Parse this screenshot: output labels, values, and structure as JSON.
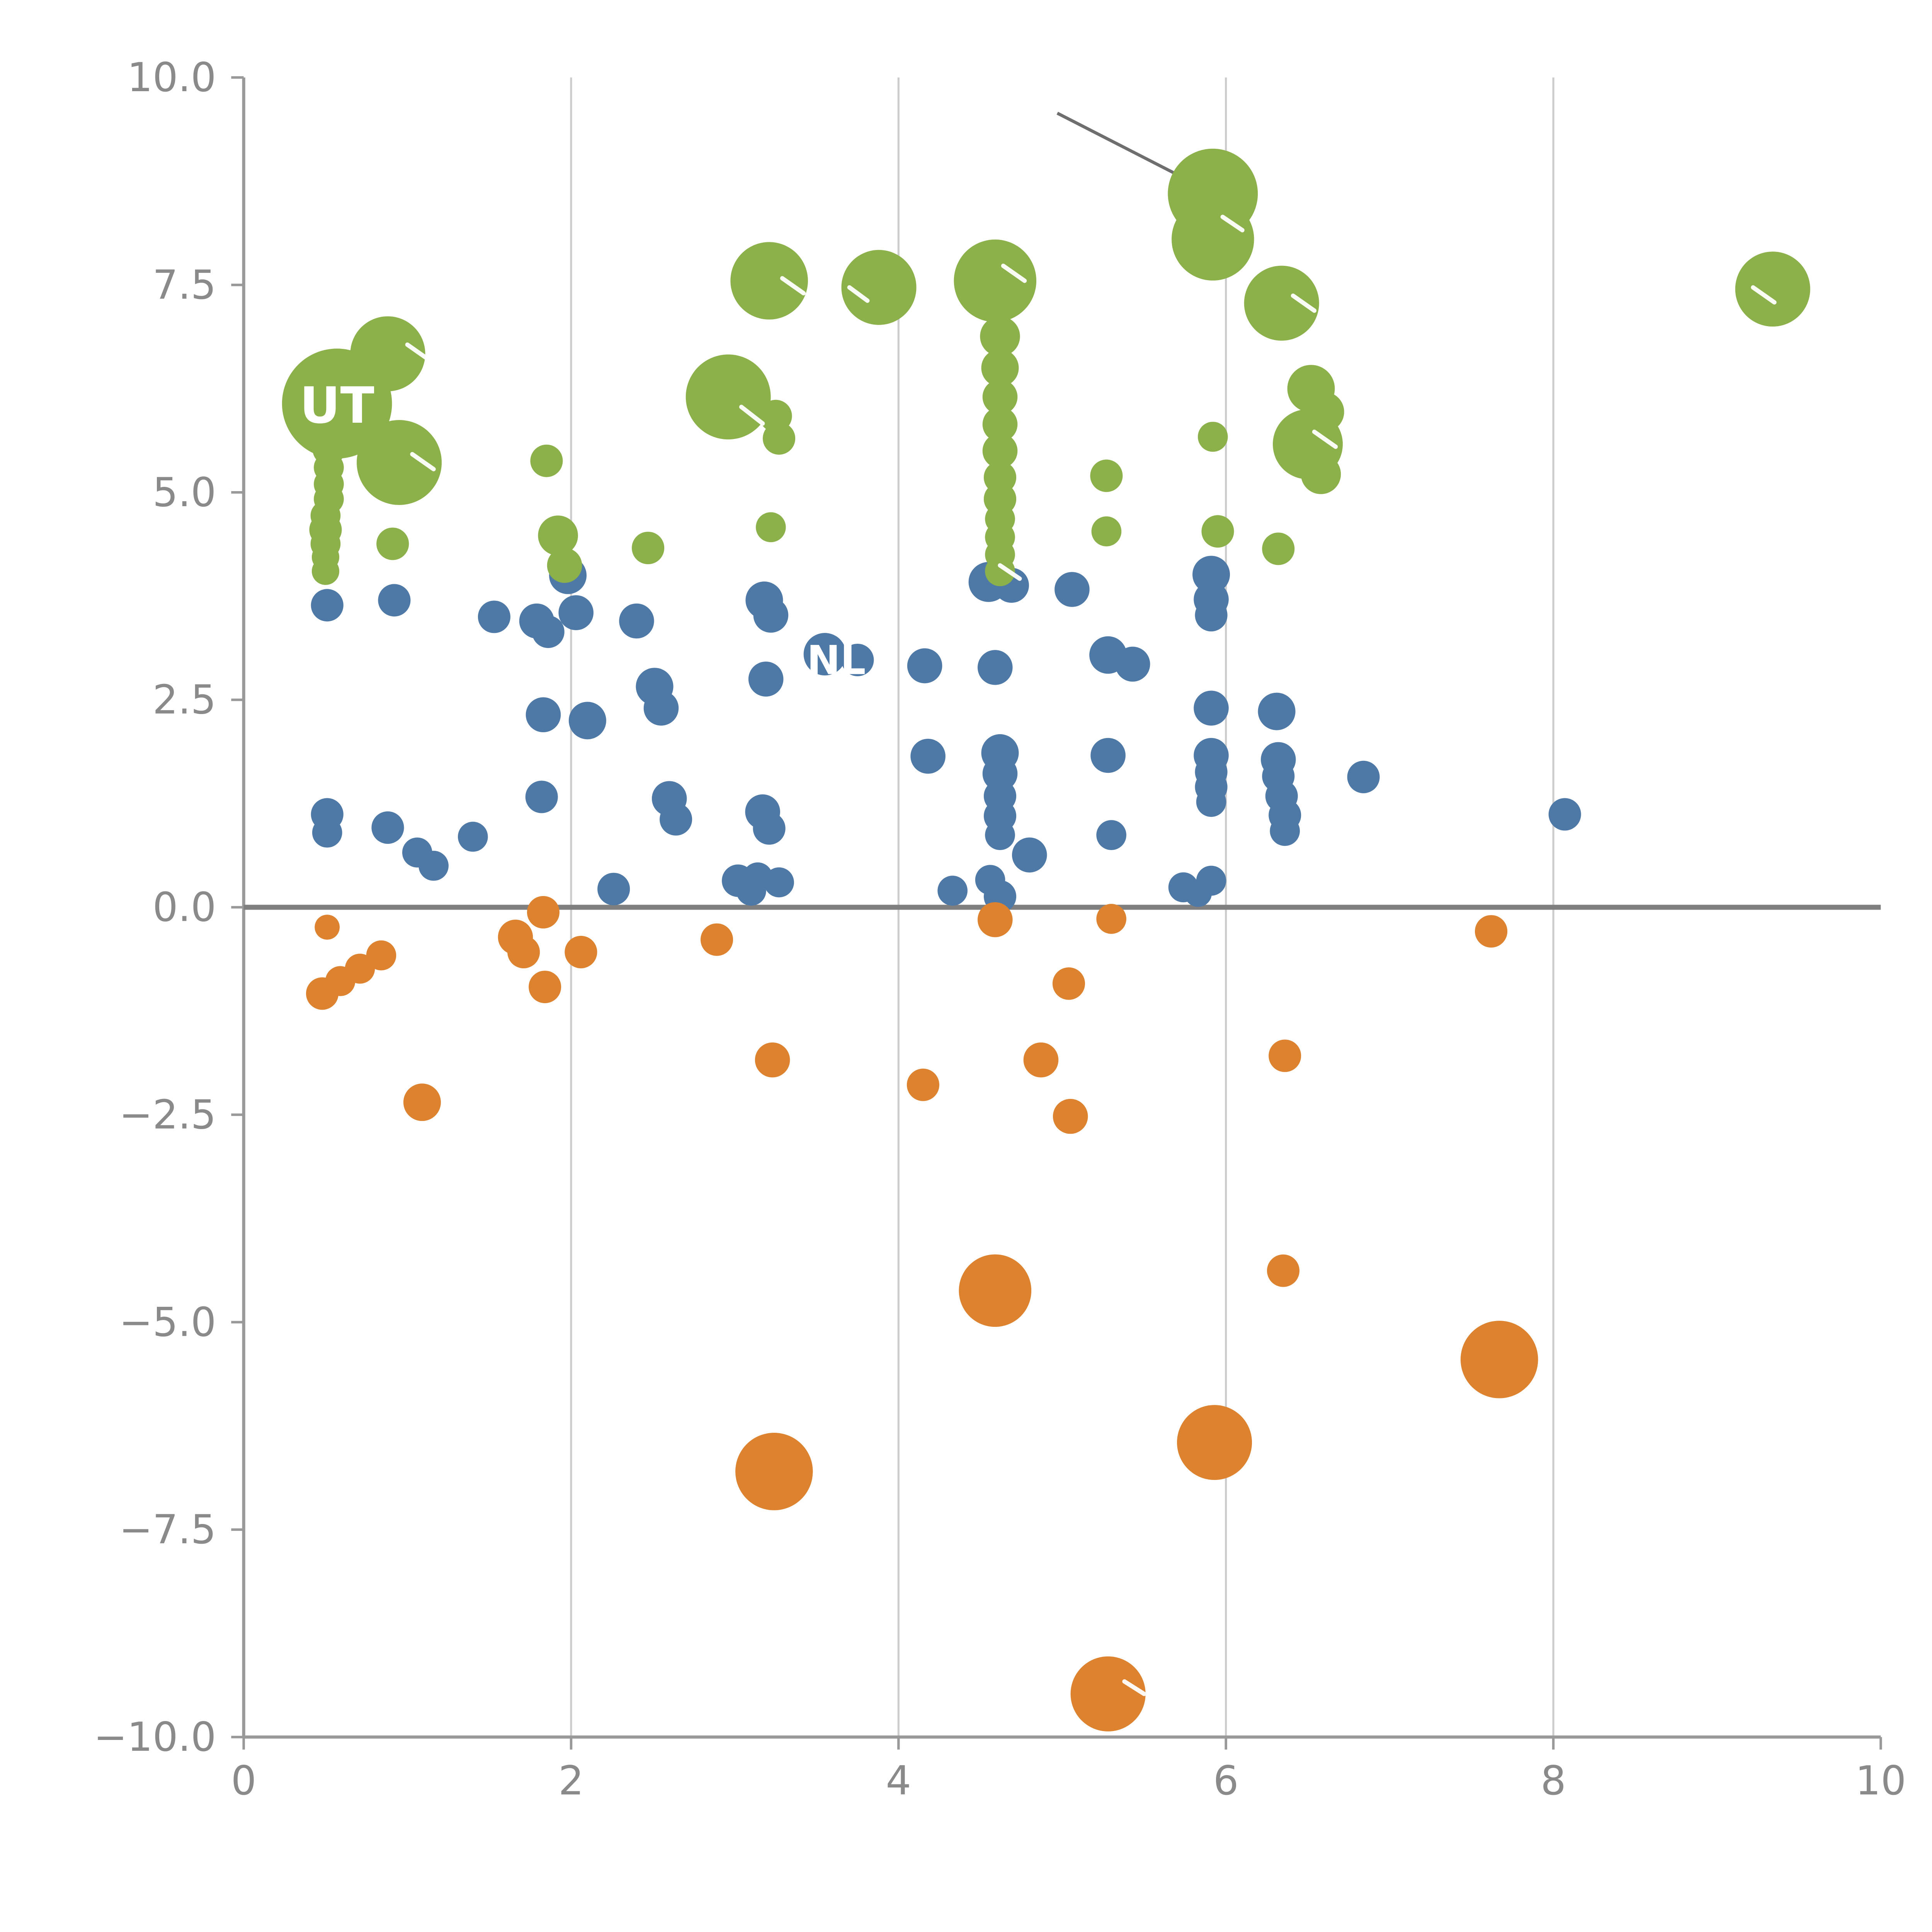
{
  "page": {
    "background": "#ffffff"
  },
  "chart_data": {
    "type": "scatter",
    "title": "",
    "subtitle": "",
    "xlabel": "",
    "ylabel": "",
    "xlim": [
      0,
      10
    ],
    "ylim": [
      -10,
      10
    ],
    "grid": "vertical-only",
    "legend": "none",
    "axis_color": "#999999",
    "grid_color": "#cccccc",
    "tick_label_color": "#8a8a8a",
    "x_ticks": [
      {
        "v": 0,
        "label": "0"
      },
      {
        "v": 2,
        "label": "2"
      },
      {
        "v": 4,
        "label": "4"
      },
      {
        "v": 6,
        "label": "6"
      },
      {
        "v": 8,
        "label": "8"
      },
      {
        "v": 10,
        "label": "10"
      }
    ],
    "y_ticks": [
      {
        "v": 10,
        "label": "10.0"
      },
      {
        "v": 7.5,
        "label": "7.5"
      },
      {
        "v": 5,
        "label": "5.0"
      },
      {
        "v": 2.5,
        "label": "2.5"
      },
      {
        "v": 0,
        "label": "0.0"
      },
      {
        "v": -2.5,
        "label": "−2.5"
      },
      {
        "v": -5,
        "label": "−5.0"
      },
      {
        "v": -7.5,
        "label": "−7.5"
      },
      {
        "v": -10,
        "label": "−10.0"
      }
    ],
    "gridlines_x": [
      2,
      4,
      6,
      8
    ],
    "zero_line": {
      "y": 0,
      "color": "#7f7f7f",
      "width": 4
    },
    "series": [
      {
        "name": "blue",
        "color": "#4E79A7",
        "points": [
          [
            0.51,
            3.64,
            13
          ],
          [
            0.92,
            3.7,
            13
          ],
          [
            0.51,
            1.12,
            13
          ],
          [
            0.51,
            0.9,
            12
          ],
          [
            0.88,
            0.96,
            13
          ],
          [
            1.06,
            0.66,
            12
          ],
          [
            1.16,
            0.5,
            12
          ],
          [
            1.4,
            0.85,
            12
          ],
          [
            1.53,
            3.5,
            13
          ],
          [
            1.79,
            3.45,
            14
          ],
          [
            1.86,
            3.32,
            13
          ],
          [
            1.83,
            2.32,
            14
          ],
          [
            1.82,
            1.33,
            13
          ],
          [
            1.98,
            4.0,
            15
          ],
          [
            2.03,
            3.55,
            14
          ],
          [
            2.1,
            2.25,
            15
          ],
          [
            2.26,
            0.22,
            13
          ],
          [
            2.4,
            3.45,
            14
          ],
          [
            2.51,
            2.66,
            15
          ],
          [
            2.55,
            2.4,
            14
          ],
          [
            2.6,
            1.31,
            14
          ],
          [
            2.64,
            1.06,
            13
          ],
          [
            3.02,
            0.32,
            13
          ],
          [
            3.1,
            0.2,
            12
          ],
          [
            3.18,
            3.7,
            15
          ],
          [
            3.22,
            3.52,
            14
          ],
          [
            3.19,
            2.75,
            14
          ],
          [
            3.17,
            1.15,
            14
          ],
          [
            3.21,
            0.95,
            13
          ],
          [
            3.14,
            0.36,
            12
          ],
          [
            3.27,
            0.3,
            12
          ],
          [
            3.55,
            3.05,
            17
          ],
          [
            3.75,
            2.98,
            13
          ],
          [
            4.16,
            2.91,
            14
          ],
          [
            4.18,
            1.82,
            14
          ],
          [
            4.33,
            0.2,
            12
          ],
          [
            4.55,
            3.92,
            16
          ],
          [
            4.69,
            3.88,
            14
          ],
          [
            4.59,
            2.89,
            14
          ],
          [
            4.62,
            1.86,
            15
          ],
          [
            4.62,
            1.61,
            14
          ],
          [
            4.62,
            1.34,
            13
          ],
          [
            4.62,
            1.1,
            13
          ],
          [
            4.62,
            0.87,
            12
          ],
          [
            4.56,
            0.33,
            12
          ],
          [
            4.62,
            0.13,
            13
          ],
          [
            4.8,
            0.63,
            14
          ],
          [
            5.06,
            3.83,
            14
          ],
          [
            5.28,
            3.04,
            15
          ],
          [
            5.43,
            2.93,
            14
          ],
          [
            5.28,
            1.83,
            14
          ],
          [
            5.3,
            0.87,
            12
          ],
          [
            5.74,
            0.24,
            12
          ],
          [
            5.83,
            0.17,
            11
          ],
          [
            5.91,
            0.32,
            12
          ],
          [
            5.91,
            4.01,
            15
          ],
          [
            5.91,
            3.71,
            14
          ],
          [
            5.91,
            3.52,
            13
          ],
          [
            5.91,
            2.4,
            14
          ],
          [
            5.91,
            1.83,
            14
          ],
          [
            5.91,
            1.63,
            13
          ],
          [
            5.91,
            1.45,
            13
          ],
          [
            5.91,
            1.27,
            12
          ],
          [
            6.31,
            2.36,
            15
          ],
          [
            6.32,
            1.78,
            14
          ],
          [
            6.32,
            1.58,
            13
          ],
          [
            6.34,
            1.34,
            13
          ],
          [
            6.36,
            1.11,
            13
          ],
          [
            6.36,
            0.92,
            12
          ],
          [
            6.84,
            1.57,
            13
          ],
          [
            8.07,
            1.12,
            13
          ]
        ]
      },
      {
        "name": "orange",
        "color": "#DD822F",
        "points": [
          [
            0.51,
            -0.24,
            10
          ],
          [
            0.48,
            -1.04,
            13
          ],
          [
            0.59,
            -0.89,
            12
          ],
          [
            0.71,
            -0.74,
            12
          ],
          [
            0.84,
            -0.58,
            12
          ],
          [
            1.09,
            -2.35,
            15
          ],
          [
            1.66,
            -0.36,
            14
          ],
          [
            1.71,
            -0.54,
            13
          ],
          [
            1.83,
            -0.06,
            13
          ],
          [
            1.84,
            -0.96,
            13
          ],
          [
            2.06,
            -0.54,
            13
          ],
          [
            2.89,
            -0.39,
            13
          ],
          [
            3.23,
            -1.84,
            14
          ],
          [
            3.24,
            -6.8,
            31
          ],
          [
            4.15,
            -2.14,
            13
          ],
          [
            4.59,
            -0.15,
            14
          ],
          [
            4.59,
            -4.62,
            29
          ],
          [
            4.87,
            -1.84,
            14
          ],
          [
            5.04,
            -0.92,
            13
          ],
          [
            5.05,
            -2.52,
            14
          ],
          [
            5.3,
            -0.14,
            12
          ],
          [
            5.28,
            -9.48,
            30
          ],
          [
            5.93,
            -6.45,
            30
          ],
          [
            6.36,
            -1.79,
            13
          ],
          [
            6.35,
            -4.38,
            13
          ],
          [
            7.62,
            -0.29,
            13
          ],
          [
            7.67,
            -5.45,
            31
          ]
        ]
      },
      {
        "name": "green",
        "color": "#8CB14A",
        "points": [
          [
            0.57,
            6.07,
            44
          ],
          [
            0.88,
            6.67,
            30
          ],
          [
            0.95,
            5.36,
            34
          ],
          [
            0.52,
            5.52,
            13
          ],
          [
            0.52,
            5.3,
            12
          ],
          [
            0.52,
            5.1,
            12
          ],
          [
            0.52,
            4.92,
            12
          ],
          [
            0.5,
            4.72,
            12
          ],
          [
            0.5,
            4.55,
            13
          ],
          [
            0.5,
            4.38,
            12
          ],
          [
            0.5,
            4.22,
            11
          ],
          [
            0.5,
            4.05,
            11
          ],
          [
            0.91,
            4.38,
            13
          ],
          [
            1.85,
            5.38,
            13
          ],
          [
            1.92,
            4.48,
            16
          ],
          [
            1.96,
            4.12,
            14
          ],
          [
            2.47,
            4.33,
            13
          ],
          [
            2.96,
            6.15,
            34
          ],
          [
            3.21,
            7.55,
            31
          ],
          [
            3.25,
            5.92,
            13
          ],
          [
            3.27,
            5.65,
            13
          ],
          [
            3.22,
            4.58,
            12
          ],
          [
            3.88,
            7.47,
            30
          ],
          [
            4.59,
            7.55,
            33
          ],
          [
            4.62,
            6.88,
            16
          ],
          [
            4.62,
            6.5,
            15
          ],
          [
            4.62,
            6.15,
            14
          ],
          [
            4.62,
            5.82,
            14
          ],
          [
            4.62,
            5.5,
            14
          ],
          [
            4.62,
            5.18,
            13
          ],
          [
            4.62,
            4.92,
            13
          ],
          [
            4.62,
            4.68,
            12
          ],
          [
            4.62,
            4.46,
            12
          ],
          [
            4.62,
            4.25,
            12
          ],
          [
            4.62,
            4.05,
            12
          ],
          [
            5.27,
            5.2,
            13
          ],
          [
            5.27,
            4.53,
            12
          ],
          [
            5.92,
            8.6,
            36
          ],
          [
            5.92,
            8.05,
            33
          ],
          [
            5.92,
            5.67,
            12
          ],
          [
            5.95,
            4.53,
            13
          ],
          [
            6.34,
            7.28,
            30
          ],
          [
            6.52,
            6.25,
            19
          ],
          [
            6.6,
            5.97,
            16
          ],
          [
            6.5,
            5.58,
            28
          ],
          [
            6.58,
            5.22,
            16
          ],
          [
            6.32,
            4.32,
            13
          ],
          [
            9.34,
            7.45,
            30
          ]
        ]
      }
    ],
    "annotations": {
      "line": {
        "x1": 4.97,
        "y1": 9.57,
        "x2": 5.89,
        "y2": 8.64,
        "color": "#6e6e6e",
        "width": 2.5
      },
      "labels": [
        {
          "text": "UT",
          "x": 0.57,
          "y": 6.05,
          "color": "#ffffff",
          "size": 40
        },
        {
          "text": "NL",
          "x": 3.62,
          "y": 2.98,
          "color": "#ffffff",
          "size": 32
        }
      ],
      "dashes": [
        [
          1.0,
          6.78,
          1.13,
          6.6
        ],
        [
          1.03,
          5.46,
          1.16,
          5.28
        ],
        [
          3.04,
          6.03,
          3.17,
          5.83
        ],
        [
          3.29,
          7.58,
          3.42,
          7.4
        ],
        [
          3.7,
          7.47,
          3.81,
          7.31
        ],
        [
          4.64,
          7.73,
          4.77,
          7.55
        ],
        [
          4.62,
          4.12,
          4.74,
          3.96
        ],
        [
          6.41,
          7.37,
          6.54,
          7.19
        ],
        [
          6.54,
          5.73,
          6.67,
          5.55
        ],
        [
          9.22,
          7.47,
          9.35,
          7.29
        ],
        [
          5.98,
          8.32,
          6.1,
          8.16
        ],
        [
          5.38,
          -9.33,
          5.5,
          -9.48
        ]
      ]
    }
  }
}
